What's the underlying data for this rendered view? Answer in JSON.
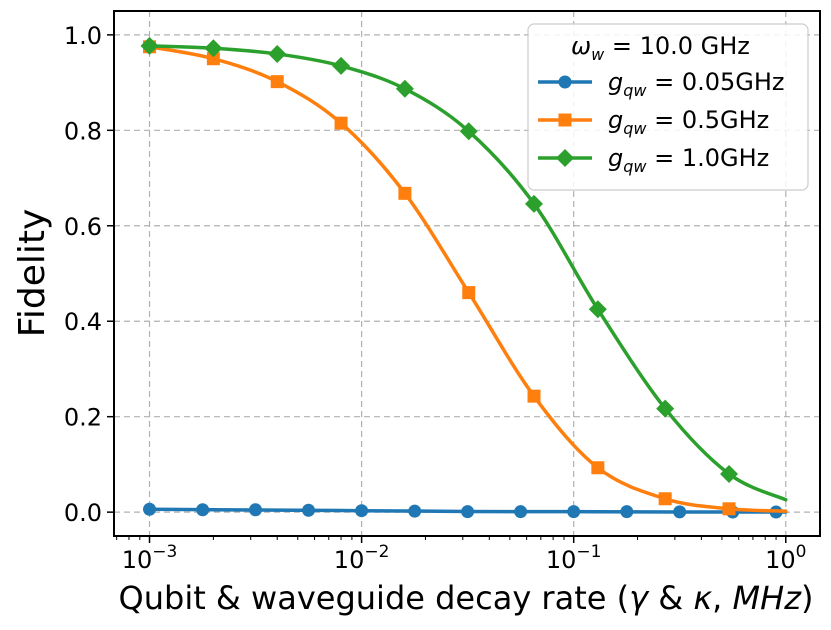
{
  "chart_data": {
    "type": "line",
    "xscale": "log",
    "xlim": [
      0.00068,
      1.45
    ],
    "ylim": [
      -0.05,
      1.05
    ],
    "xlabel": "Qubit & waveguide decay rate (γ & κ, MHz)",
    "xlabel_parts": {
      "prefix": "Qubit & waveguide decay rate (",
      "gamma": "γ",
      "amp": " & ",
      "kappa": "κ",
      "comma": ", ",
      "unit": "MHz",
      "suffix": ")"
    },
    "ylabel": "Fidelity",
    "x_ticks": [
      {
        "value": 0.001,
        "base": "10",
        "exp": "−3"
      },
      {
        "value": 0.01,
        "base": "10",
        "exp": "−2"
      },
      {
        "value": 0.1,
        "base": "10",
        "exp": "−1"
      },
      {
        "value": 1,
        "base": "10",
        "exp": "0"
      }
    ],
    "y_ticks": [
      {
        "value": 0.0,
        "label": "0.0"
      },
      {
        "value": 0.2,
        "label": "0.2"
      },
      {
        "value": 0.4,
        "label": "0.4"
      },
      {
        "value": 0.6,
        "label": "0.6"
      },
      {
        "value": 0.8,
        "label": "0.8"
      },
      {
        "value": 1.0,
        "label": "1.0"
      }
    ],
    "grid": true,
    "legend": {
      "placement": "top-right",
      "title_symbol": "ω",
      "title_sub": "w",
      "title_rest": " = 10.0 GHz"
    },
    "series": [
      {
        "name": "g_qw = 0.05GHz",
        "label_symbol": "g",
        "label_sub": "qw",
        "label_rest": " = 0.05GHz",
        "color": "#1f77b4",
        "marker": "circle",
        "curve_x": [
          0.001,
          0.002,
          0.005,
          0.01,
          0.02,
          0.05,
          0.1,
          0.2,
          0.5,
          1.0
        ],
        "curve_y": [
          0.006,
          0.005,
          0.004,
          0.003,
          0.002,
          0.001,
          0.001,
          0.0005,
          0.0003,
          0.0002
        ],
        "marker_x": [
          0.001,
          0.00178,
          0.00316,
          0.00562,
          0.01,
          0.0178,
          0.0316,
          0.0562,
          0.1,
          0.178,
          0.316,
          0.562,
          0.9
        ],
        "marker_y": [
          0.006,
          0.005,
          0.005,
          0.004,
          0.003,
          0.002,
          0.001,
          0.001,
          0.001,
          0.001,
          0.0005,
          0.0003,
          0.0002
        ]
      },
      {
        "name": "g_qw = 0.5GHz",
        "label_symbol": "g",
        "label_sub": "qw",
        "label_rest": " = 0.5GHz",
        "color": "#ff7f0e",
        "marker": "square",
        "curve_x": [
          0.001,
          0.002,
          0.004,
          0.008,
          0.016,
          0.032,
          0.065,
          0.13,
          0.27,
          0.54,
          1.0
        ],
        "curve_y": [
          0.975,
          0.95,
          0.902,
          0.815,
          0.668,
          0.46,
          0.243,
          0.093,
          0.028,
          0.007,
          0.002
        ],
        "marker_x": [
          0.001,
          0.002,
          0.004,
          0.008,
          0.016,
          0.032,
          0.065,
          0.13,
          0.27,
          0.54
        ],
        "marker_y": [
          0.975,
          0.95,
          0.902,
          0.815,
          0.668,
          0.46,
          0.243,
          0.093,
          0.028,
          0.007
        ]
      },
      {
        "name": "g_qw = 1.0GHz",
        "label_symbol": "g",
        "label_sub": "qw",
        "label_rest": " = 1.0GHz",
        "color": "#2ca02c",
        "marker": "diamond",
        "curve_x": [
          0.001,
          0.002,
          0.004,
          0.008,
          0.016,
          0.032,
          0.065,
          0.13,
          0.27,
          0.54,
          1.0
        ],
        "curve_y": [
          0.977,
          0.972,
          0.96,
          0.935,
          0.887,
          0.798,
          0.646,
          0.425,
          0.217,
          0.08,
          0.026
        ],
        "marker_x": [
          0.001,
          0.002,
          0.004,
          0.008,
          0.016,
          0.032,
          0.065,
          0.13,
          0.27,
          0.54
        ],
        "marker_y": [
          0.977,
          0.972,
          0.96,
          0.935,
          0.887,
          0.798,
          0.646,
          0.425,
          0.217,
          0.08
        ]
      }
    ]
  }
}
